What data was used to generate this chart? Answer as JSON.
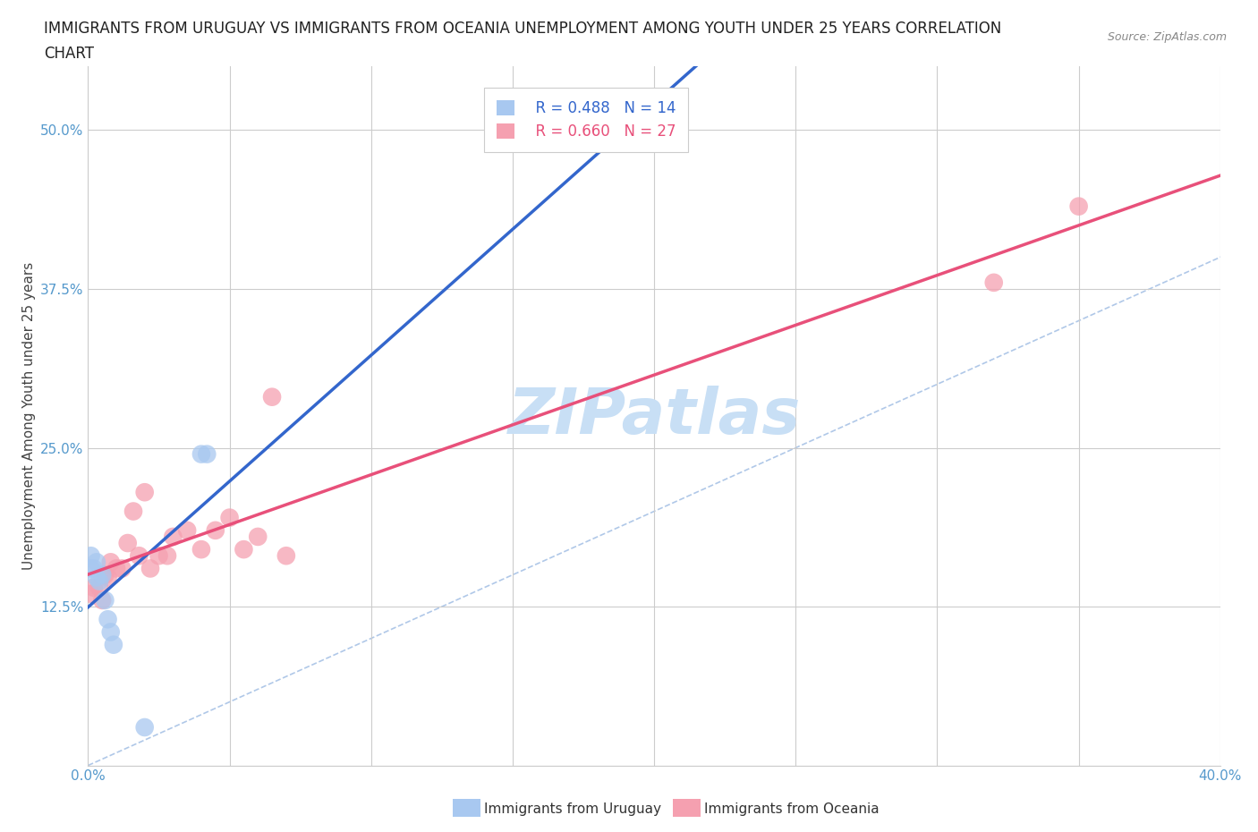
{
  "title_line1": "IMMIGRANTS FROM URUGUAY VS IMMIGRANTS FROM OCEANIA UNEMPLOYMENT AMONG YOUTH UNDER 25 YEARS CORRELATION",
  "title_line2": "CHART",
  "source_text": "Source: ZipAtlas.com",
  "ylabel": "Unemployment Among Youth under 25 years",
  "xlim": [
    0.0,
    0.4
  ],
  "ylim": [
    0.0,
    0.55
  ],
  "x_ticks": [
    0.0,
    0.05,
    0.1,
    0.15,
    0.2,
    0.25,
    0.3,
    0.35,
    0.4
  ],
  "x_tick_labels": [
    "0.0%",
    "",
    "",
    "",
    "",
    "",
    "",
    "",
    "40.0%"
  ],
  "y_tick_positions": [
    0.0,
    0.125,
    0.25,
    0.375,
    0.5
  ],
  "y_tick_labels": [
    "",
    "12.5%",
    "25.0%",
    "37.5%",
    "50.0%"
  ],
  "grid_color": "#cccccc",
  "background_color": "#ffffff",
  "uruguay_color": "#a8c8f0",
  "oceania_color": "#f5a0b0",
  "uruguay_line_color": "#3366cc",
  "oceania_line_color": "#e8507a",
  "diag_line_color": "#b0c8e8",
  "legend_R_uruguay": "R = 0.488",
  "legend_N_uruguay": "N = 14",
  "legend_R_oceania": "R = 0.660",
  "legend_N_oceania": "N = 27",
  "uruguay_x": [
    0.001,
    0.001,
    0.002,
    0.003,
    0.003,
    0.004,
    0.005,
    0.006,
    0.007,
    0.008,
    0.009,
    0.04,
    0.042,
    0.02
  ],
  "uruguay_y": [
    0.155,
    0.165,
    0.155,
    0.16,
    0.148,
    0.145,
    0.15,
    0.13,
    0.115,
    0.105,
    0.095,
    0.245,
    0.245,
    0.03
  ],
  "oceania_x": [
    0.001,
    0.002,
    0.004,
    0.005,
    0.006,
    0.007,
    0.008,
    0.01,
    0.012,
    0.014,
    0.016,
    0.018,
    0.02,
    0.022,
    0.025,
    0.028,
    0.03,
    0.035,
    0.04,
    0.045,
    0.05,
    0.055,
    0.06,
    0.065,
    0.07,
    0.32,
    0.35
  ],
  "oceania_y": [
    0.135,
    0.14,
    0.14,
    0.13,
    0.15,
    0.148,
    0.16,
    0.155,
    0.155,
    0.175,
    0.2,
    0.165,
    0.215,
    0.155,
    0.165,
    0.165,
    0.18,
    0.185,
    0.17,
    0.185,
    0.195,
    0.17,
    0.18,
    0.29,
    0.165,
    0.38,
    0.44
  ],
  "watermark_text": "ZIPatlas",
  "watermark_color": "#c8dff5",
  "watermark_fontsize": 52,
  "title_fontsize": 12,
  "axis_label_fontsize": 11,
  "tick_fontsize": 11,
  "legend_fontsize": 12,
  "tick_color": "#5599cc"
}
